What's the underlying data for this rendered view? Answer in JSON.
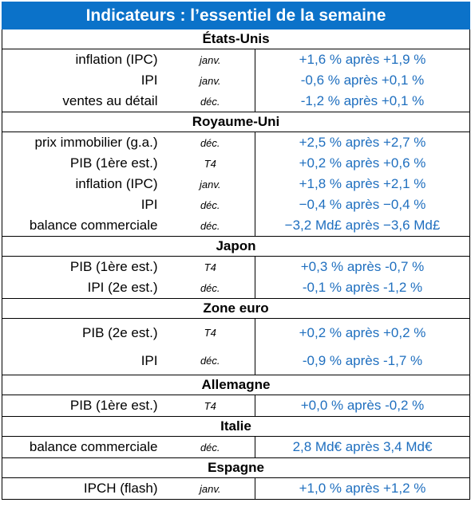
{
  "title": "Indicateurs : l’essentiel de la semaine",
  "colors": {
    "title_bg": "#0b72c9",
    "value_text": "#1f6fbf"
  },
  "sections": [
    {
      "name": "États-Unis",
      "rows": [
        {
          "label": "inflation (IPC)",
          "period": "janv.",
          "value": "+1,6 % après +1,9 %"
        },
        {
          "label": "IPI",
          "period": "janv.",
          "value": "-0,6 % après +0,1 %"
        },
        {
          "label": "ventes au détail",
          "period": "déc.",
          "value": "-1,2 % après +0,1 %"
        }
      ]
    },
    {
      "name": "Royaume-Uni",
      "rows": [
        {
          "label": "prix immobilier (g.a.)",
          "period": "déc.",
          "value": "+2,5 % après +2,7 %"
        },
        {
          "label": "PIB (1ère est.)",
          "period": "T4",
          "value": "+0,2 % après +0,6 %"
        },
        {
          "label": "inflation (IPC)",
          "period": "janv.",
          "value": "+1,8 % après +2,1 %"
        },
        {
          "label": "IPI",
          "period": "déc.",
          "value": "−0,4 % après −0,4 %"
        },
        {
          "label": "balance commerciale",
          "period": "déc.",
          "value": "−3,2 Md£ après −3,6 Md£"
        }
      ]
    },
    {
      "name": "Japon",
      "rows": [
        {
          "label": "PIB (1ère est.)",
          "period": "T4",
          "value": "+0,3 % après -0,7 %"
        },
        {
          "label": "IPI (2e est.)",
          "period": "déc.",
          "value": "-0,1 % après -1,2 %"
        }
      ]
    },
    {
      "name": "Zone euro",
      "rows": [
        {
          "label": "PIB (2e est.)",
          "period": "T4",
          "value": "+0,2 % après +0,2 %"
        },
        {
          "label": "IPI",
          "period": "déc.",
          "value": "-0,9 % après -1,7 %"
        }
      ]
    },
    {
      "name": "Allemagne",
      "rows": [
        {
          "label": "PIB (1ère est.)",
          "period": "T4",
          "value": "+0,0 % après -0,2 %"
        }
      ]
    },
    {
      "name": "Italie",
      "rows": [
        {
          "label": "balance commerciale",
          "period": "déc.",
          "value": "2,8 Md€ après 3,4 Md€"
        }
      ]
    },
    {
      "name": "Espagne",
      "rows": [
        {
          "label": "IPCH (flash)",
          "period": "janv.",
          "value": "+1,0 % après +1,2 %"
        }
      ]
    }
  ]
}
